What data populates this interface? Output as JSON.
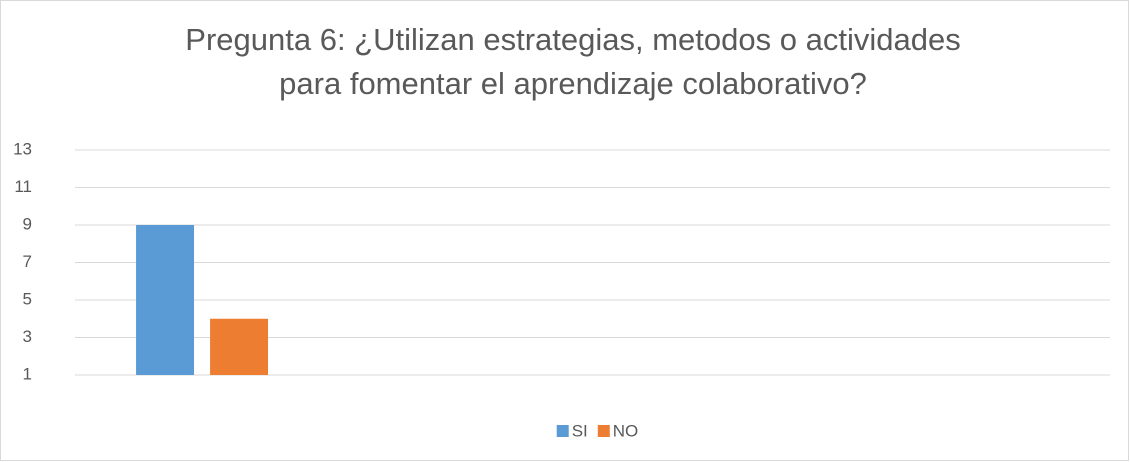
{
  "chart_data": {
    "type": "bar",
    "title": [
      "Pregunta 6: ¿Utilizan estrategias, metodos o actividades",
      "para fomentar el aprendizaje colaborativo?"
    ],
    "categories": [
      null,
      null,
      null,
      null
    ],
    "series": [
      {
        "name": "SI",
        "color": "#5b9bd5",
        "values": [
          9,
          null,
          null,
          null
        ]
      },
      {
        "name": "NO",
        "color": "#ed7d31",
        "values": [
          4,
          null,
          null,
          null
        ]
      }
    ],
    "ylim": [
      1,
      13
    ],
    "yticks": [
      1,
      3,
      5,
      7,
      9,
      11,
      13
    ],
    "grid": true,
    "legend": "bottom"
  }
}
